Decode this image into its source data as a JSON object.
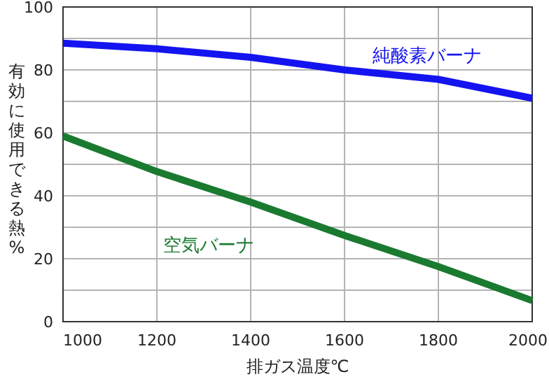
{
  "chart_data": {
    "type": "line",
    "xlabel": "排ガス温度℃",
    "ylabel": "有効に使用できる熱%",
    "x": [
      1000,
      1200,
      1400,
      1600,
      1800,
      2000
    ],
    "series": [
      {
        "name": "純酸素バーナ",
        "color": "#1414f0",
        "values": [
          88.5,
          86.7,
          84,
          80,
          77,
          71
        ]
      },
      {
        "name": "空気バーナ",
        "color": "#1a7a30",
        "values": [
          59,
          47.7,
          38,
          27.4,
          17.5,
          6.7
        ]
      }
    ],
    "xlim": [
      1000,
      2000
    ],
    "xticks": [
      1000,
      1200,
      1400,
      1600,
      1800,
      2000
    ],
    "ylim": [
      0,
      100
    ],
    "yticks": [
      0,
      {
        "value": 10,
        "label": null
      },
      20,
      {
        "value": 30,
        "label": null
      },
      40,
      {
        "value": 50,
        "label": null
      },
      60,
      {
        "value": 70,
        "label": null
      },
      80,
      {
        "value": 90,
        "label": null
      },
      100
    ],
    "grid": true,
    "marker": "none",
    "line_style": "solid"
  }
}
